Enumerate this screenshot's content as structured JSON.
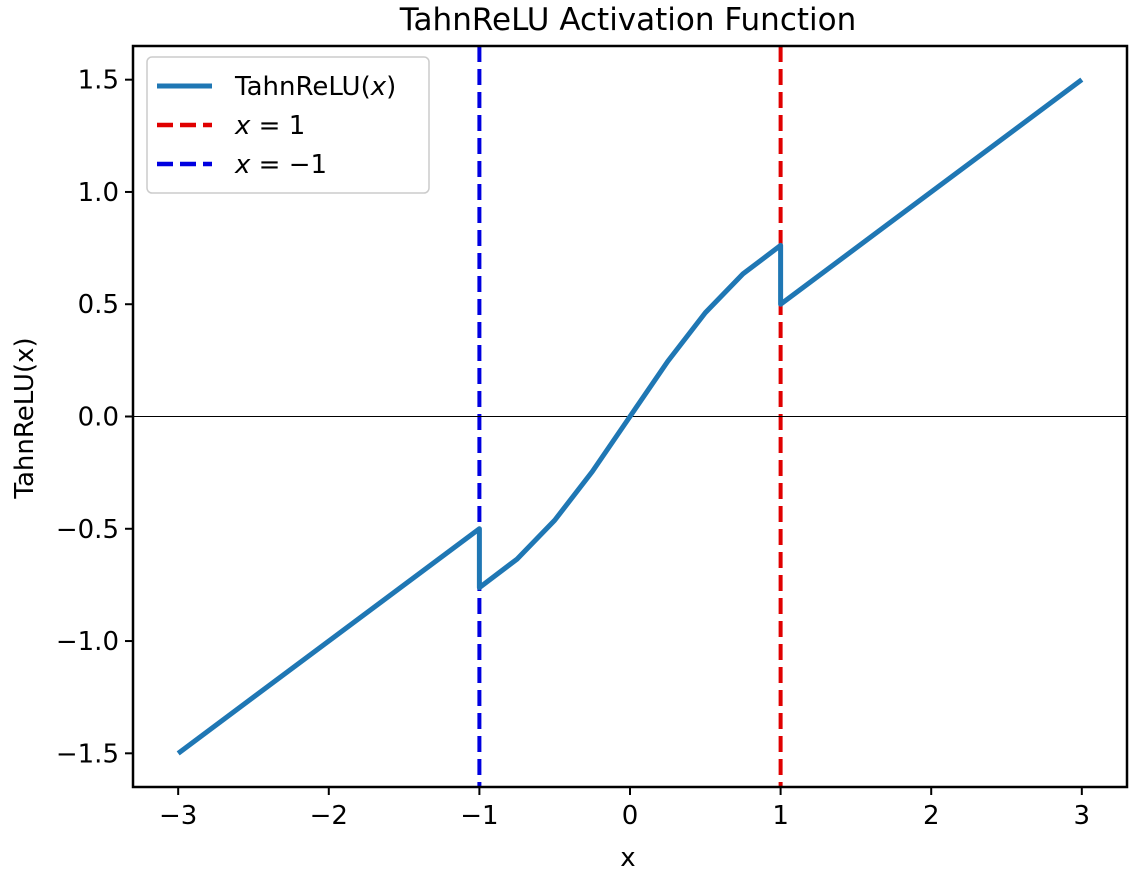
{
  "chart_data": {
    "type": "line",
    "title": "TahnReLU Activation Function",
    "xlabel": "x",
    "ylabel": "TahnReLU(x)",
    "xlim": [
      -3.3,
      3.3
    ],
    "ylim": [
      -1.65,
      1.65
    ],
    "xticks": [
      -3,
      -2,
      -1,
      0,
      1,
      2,
      3
    ],
    "xtick_labels": [
      "−3",
      "−2",
      "−1",
      "0",
      "1",
      "2",
      "3"
    ],
    "yticks": [
      -1.5,
      -1.0,
      -0.5,
      0.0,
      0.5,
      1.0,
      1.5
    ],
    "ytick_labels": [
      "−1.5",
      "−1.0",
      "−0.5",
      "0.0",
      "0.5",
      "1.0",
      "1.5"
    ],
    "grid": false,
    "legend_position": "upper-left",
    "series": [
      {
        "name": "TahnReLU(x)",
        "color": "#1f77b4",
        "style": "solid",
        "x": [
          -3.0,
          -1.0,
          -1.0,
          -0.75,
          -0.5,
          -0.25,
          0.0,
          0.25,
          0.5,
          0.75,
          1.0,
          1.0,
          3.0
        ],
        "y": [
          -1.5,
          -0.5,
          -0.762,
          -0.635,
          -0.462,
          -0.245,
          0.0,
          0.245,
          0.462,
          0.635,
          0.762,
          0.5,
          1.5
        ]
      }
    ],
    "reference_lines": [
      {
        "name": "x = 1",
        "orientation": "vertical",
        "value": 1,
        "color": "#e00000",
        "style": "dashed"
      },
      {
        "name": "x = −1",
        "orientation": "vertical",
        "value": -1,
        "color": "#0000e0",
        "style": "dashed"
      },
      {
        "orientation": "horizontal",
        "value": 0,
        "color": "#000000",
        "style": "solid"
      }
    ],
    "legend": [
      {
        "label_prefix": "TahnReLU(",
        "label_var": "x",
        "label_suffix": ")",
        "color": "#1f77b4",
        "style": "solid"
      },
      {
        "label_prefix": "",
        "label_var": "x",
        "label_suffix": " = 1",
        "color": "#e00000",
        "style": "dashed"
      },
      {
        "label_prefix": "",
        "label_var": "x",
        "label_suffix": " = −1",
        "color": "#0000e0",
        "style": "dashed"
      }
    ]
  }
}
